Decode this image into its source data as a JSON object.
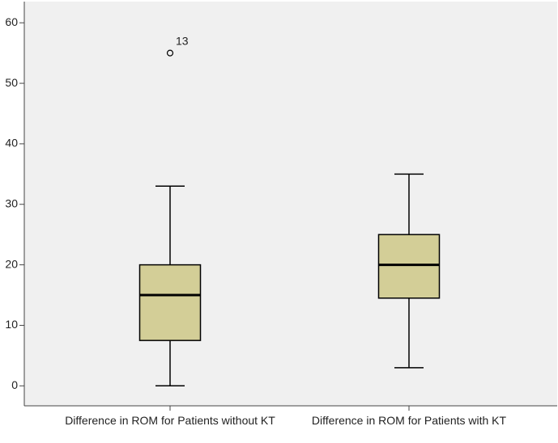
{
  "chart_data": {
    "type": "box",
    "categories": [
      "Difference in ROM for Patients without KT",
      "Difference in ROM for Patients with KT"
    ],
    "boxes": [
      {
        "whislo": 0,
        "q1": 7.5,
        "med": 15,
        "q3": 20,
        "whishi": 33,
        "outliers": [
          55
        ],
        "outlier_labels": [
          "13"
        ]
      },
      {
        "whislo": 3,
        "q1": 14.5,
        "med": 20,
        "q3": 25,
        "whishi": 35,
        "outliers": [],
        "outlier_labels": []
      }
    ],
    "color": "#d3ce97",
    "ylim": [
      -3.3,
      63.5
    ],
    "yticks": [
      0,
      10,
      20,
      30,
      40,
      50,
      60
    ]
  }
}
